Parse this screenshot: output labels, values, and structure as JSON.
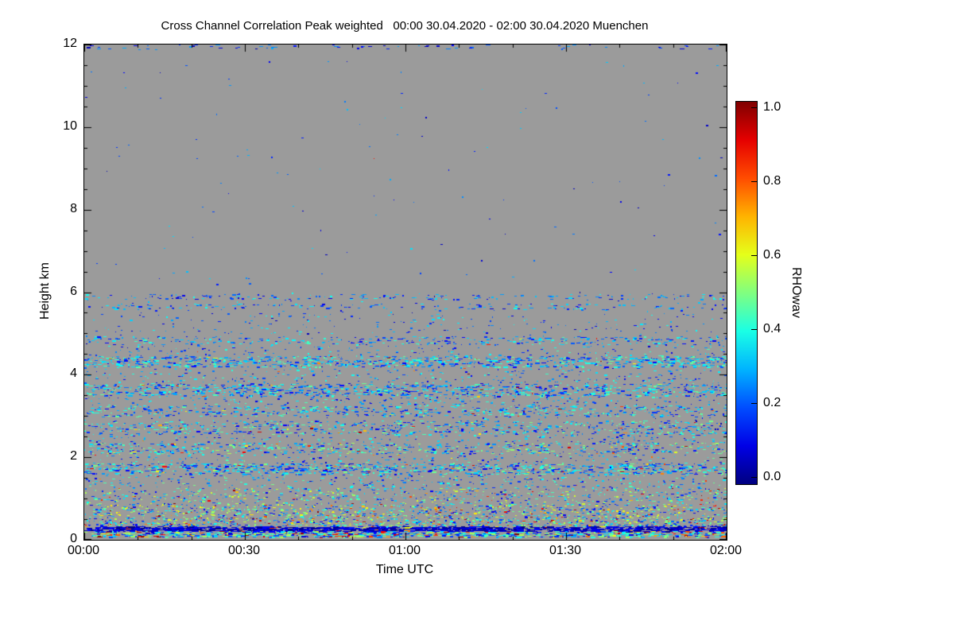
{
  "chart_data": {
    "type": "heatmap",
    "title": "Cross Channel Correlation Peak weighted   00:00 30.04.2020 - 02:00 30.04.2020 Muenchen",
    "xlabel": "Time UTC",
    "ylabel": "Height km",
    "x_ticks": [
      "00:00",
      "00:30",
      "01:00",
      "01:30",
      "02:00"
    ],
    "x_tick_minutes": [
      0,
      30,
      60,
      90,
      120
    ],
    "x_minor_step_minutes": 10,
    "x_range_minutes": [
      0,
      120
    ],
    "y_ticks": [
      0,
      2,
      4,
      6,
      8,
      10,
      12
    ],
    "y_minor_step_km": 0.5,
    "y_range_km": [
      0,
      12
    ],
    "background_color": "#9b9b9b",
    "grid": false,
    "colorbar": {
      "label": "RHOwav",
      "ticks": [
        "0.0",
        "0.2",
        "0.4",
        "0.6",
        "0.8",
        "1.0"
      ],
      "tick_values": [
        0.0,
        0.2,
        0.4,
        0.6,
        0.8,
        1.0
      ],
      "range": [
        0,
        1
      ],
      "colormap": "jet"
    },
    "seed": 42,
    "speckle_bands": [
      {
        "y": [
          11.88,
          12.0
        ],
        "density": 0.05,
        "v": [
          0.05,
          0.3
        ],
        "hot": 0.0,
        "dash": [
          2,
          6
        ]
      },
      {
        "y": [
          6.0,
          11.6
        ],
        "density": 0.002,
        "v": [
          0.05,
          0.35
        ],
        "hot": 0.005,
        "dash": [
          1,
          3
        ]
      },
      {
        "y": [
          5.82,
          5.95
        ],
        "density": 0.12,
        "v": [
          0.08,
          0.4
        ],
        "hot": 0.005,
        "dash": [
          1,
          5
        ]
      },
      {
        "y": [
          5.58,
          5.72
        ],
        "density": 0.1,
        "v": [
          0.08,
          0.4
        ],
        "hot": 0.005,
        "dash": [
          1,
          5
        ]
      },
      {
        "y": [
          5.0,
          5.5
        ],
        "density": 0.02,
        "v": [
          0.08,
          0.4
        ],
        "hot": 0.005,
        "dash": [
          1,
          4
        ]
      },
      {
        "y": [
          4.72,
          4.92
        ],
        "density": 0.16,
        "v": [
          0.1,
          0.45
        ],
        "hot": 0.01,
        "dash": [
          1,
          5
        ]
      },
      {
        "y": [
          4.45,
          4.7
        ],
        "density": 0.05,
        "v": [
          0.1,
          0.45
        ],
        "hot": 0.01,
        "dash": [
          1,
          4
        ]
      },
      {
        "y": [
          4.18,
          4.45
        ],
        "density": 0.32,
        "v": [
          0.12,
          0.48
        ],
        "hot": 0.02,
        "dash": [
          1,
          6
        ]
      },
      {
        "y": [
          3.8,
          4.15
        ],
        "density": 0.06,
        "v": [
          0.1,
          0.45
        ],
        "hot": 0.01,
        "dash": [
          1,
          4
        ]
      },
      {
        "y": [
          3.48,
          3.78
        ],
        "density": 0.3,
        "v": [
          0.1,
          0.48
        ],
        "hot": 0.03,
        "dash": [
          1,
          6
        ]
      },
      {
        "y": [
          3.25,
          3.48
        ],
        "density": 0.08,
        "v": [
          0.1,
          0.45
        ],
        "hot": 0.02,
        "dash": [
          1,
          4
        ]
      },
      {
        "y": [
          2.98,
          3.25
        ],
        "density": 0.2,
        "v": [
          0.1,
          0.48
        ],
        "hot": 0.02,
        "dash": [
          1,
          5
        ]
      },
      {
        "y": [
          2.55,
          2.88
        ],
        "density": 0.2,
        "v": [
          0.1,
          0.5
        ],
        "hot": 0.03,
        "dash": [
          1,
          5
        ]
      },
      {
        "y": [
          2.35,
          2.55
        ],
        "density": 0.07,
        "v": [
          0.1,
          0.45
        ],
        "hot": 0.02,
        "dash": [
          1,
          4
        ]
      },
      {
        "y": [
          2.08,
          2.35
        ],
        "density": 0.22,
        "v": [
          0.1,
          0.55
        ],
        "hot": 0.05,
        "dash": [
          1,
          5
        ]
      },
      {
        "y": [
          1.85,
          2.08
        ],
        "density": 0.06,
        "v": [
          0.1,
          0.5
        ],
        "hot": 0.03,
        "dash": [
          1,
          4
        ]
      },
      {
        "y": [
          1.58,
          1.85
        ],
        "density": 0.32,
        "v": [
          0.1,
          0.5
        ],
        "hot": 0.04,
        "dash": [
          1,
          6
        ]
      },
      {
        "y": [
          1.25,
          1.58
        ],
        "density": 0.09,
        "v": [
          0.1,
          0.5
        ],
        "hot": 0.03,
        "dash": [
          1,
          4
        ]
      },
      {
        "y": [
          0.85,
          1.25
        ],
        "density": 0.16,
        "v": [
          0.1,
          0.6
        ],
        "hot": 0.08,
        "dash": [
          1,
          4
        ]
      },
      {
        "y": [
          0.55,
          0.85
        ],
        "density": 0.28,
        "v": [
          0.1,
          0.65
        ],
        "hot": 0.12,
        "dash": [
          1,
          4
        ]
      },
      {
        "y": [
          0.32,
          0.55
        ],
        "density": 0.38,
        "v": [
          0.08,
          0.6
        ],
        "hot": 0.15,
        "dash": [
          1,
          4
        ]
      },
      {
        "y": [
          0.2,
          0.32
        ],
        "density": 0.85,
        "v": [
          0.0,
          0.15
        ],
        "hot": 0.03,
        "dash": [
          3,
          9
        ]
      },
      {
        "y": [
          0.06,
          0.2
        ],
        "density": 0.6,
        "v": [
          0.08,
          0.55
        ],
        "hot": 0.18,
        "dash": [
          2,
          7
        ]
      },
      {
        "y": [
          1.0,
          6.0
        ],
        "density": 0.015,
        "v": [
          0.05,
          0.4
        ],
        "hot": 0.01,
        "dash": [
          1,
          3
        ]
      }
    ]
  }
}
